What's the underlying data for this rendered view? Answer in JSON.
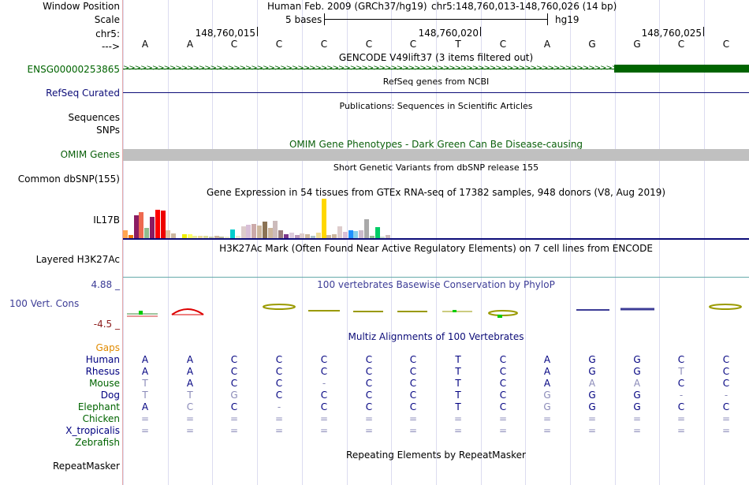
{
  "header": {
    "window_position_label": "Window Position",
    "scale_label": "Scale",
    "chrom_label": "chr5:",
    "arrow_label": "--->",
    "assembly_title": "Human Feb. 2009 (GRCh37/hg19)",
    "position": "chr5:148,760,013-148,760,026 (14 bp)",
    "scale_text": "5 bases",
    "scale_build": "hg19",
    "coords": [
      "148,760,015",
      "148,760,020",
      "148,760,025"
    ],
    "sequence": [
      "A",
      "A",
      "C",
      "C",
      "C",
      "C",
      "C",
      "T",
      "C",
      "A",
      "G",
      "G",
      "C",
      "C"
    ]
  },
  "tracks": {
    "gencode": {
      "title": "GENCODE V49lift37 (3 items filtered out)",
      "item_label": "ENSG00000253865",
      "color": "#006400"
    },
    "refseq": {
      "title": "RefSeq genes from NCBI",
      "label": "RefSeq Curated",
      "color": "#0c0c78"
    },
    "publications": {
      "title": "Publications: Sequences in Scientific Articles",
      "label_line1": "Sequences",
      "label_line2": "SNPs"
    },
    "omim": {
      "title": "OMIM Gene Phenotypes - Dark Green Can Be Disease-causing",
      "label": "OMIM Genes",
      "color": "#0a5f0a"
    },
    "dbsnp": {
      "title": "Short Genetic Variants from dbSNP release 155",
      "label": "Common dbSNP(155)"
    },
    "gtex": {
      "title": "Gene Expression in 54 tissues from GTEx RNA-seq of 17382 samples, 948 donors (V8, Aug 2019)",
      "label": "IL17B",
      "bar_colors": [
        "#ffa54f",
        "#ee7600",
        "#8b1c62",
        "#ee6a50",
        "#8fbc8f",
        "#8b1c62",
        "#ff0000",
        "#ee0000",
        "#e0c0a0",
        "#cdb79e",
        "#ffffff",
        "#eeee00",
        "#ffff66",
        "#eeee99",
        "#eedd99",
        "#dddd99",
        "#ccccaa",
        "#cdb79e",
        "#bbbb99",
        "#eeeecc",
        "#00cdcd",
        "#eeeecc",
        "#ddcccc",
        "#d8bfd8",
        "#ccaaaa",
        "#cdb79e",
        "#8b7355",
        "#cdb79e",
        "#ccbbbb",
        "#9a7d7d",
        "#7a378b",
        "#ddccdd",
        "#bb99bb",
        "#ddcccc",
        "#cdb79e",
        "#b0c4c4",
        "#eedd99",
        "#ffd700",
        "#cdb79e",
        "#cdb79e",
        "#ddcccc",
        "#d8bfd8",
        "#1e90ff",
        "#87ceeb",
        "#ccbbcc",
        "#a9a9a9",
        "#8fbc8f",
        "#00cd66",
        "#ccddcc",
        "#ccbbbb"
      ],
      "bar_values": [
        10,
        4,
        28,
        32,
        12,
        26,
        35,
        34,
        10,
        6,
        2,
        5,
        5,
        3,
        3,
        3,
        2,
        3,
        2,
        2,
        11,
        3,
        14,
        16,
        17,
        15,
        20,
        12,
        21,
        10,
        5,
        7,
        4,
        6,
        5,
        3,
        7,
        48,
        4,
        5,
        14,
        8,
        10,
        9,
        10,
        23,
        3,
        13,
        2,
        4
      ]
    },
    "h3k27ac": {
      "title": "H3K27Ac Mark (Often Found Near Active Regulatory Elements) on 7 cell lines from ENCODE",
      "label": "Layered H3K27Ac"
    },
    "phylop": {
      "title": "100 vertebrates Basewise Conservation by PhyloP",
      "label": "100 Vert. Cons",
      "max": "4.88 _",
      "min": "-4.5 _",
      "color": "#3c3c96"
    },
    "multiz": {
      "title": "Multiz Alignments of 100 Vertebrates",
      "gaps_label": "Gaps",
      "species": [
        {
          "name": "Human",
          "color": "#000080",
          "bases": [
            "A",
            "A",
            "C",
            "C",
            "C",
            "C",
            "C",
            "T",
            "C",
            "A",
            "G",
            "G",
            "C",
            "C"
          ]
        },
        {
          "name": "Rhesus",
          "color": "#000080",
          "bases": [
            "A",
            "A",
            "C",
            "C",
            "C",
            "C",
            "C",
            "T",
            "C",
            "A",
            "G",
            "G",
            "T",
            "C"
          ]
        },
        {
          "name": "Mouse",
          "color": "#006400",
          "bases": [
            "T",
            "A",
            "C",
            "C",
            "-",
            "C",
            "C",
            "T",
            "C",
            "A",
            "A",
            "A",
            "C",
            "C"
          ]
        },
        {
          "name": "Dog",
          "color": "#000080",
          "bases": [
            "T",
            "T",
            "G",
            "C",
            "C",
            "C",
            "C",
            "T",
            "C",
            "G",
            "G",
            "G",
            "-",
            "-"
          ]
        },
        {
          "name": "Elephant",
          "color": "#006400",
          "bases": [
            "A",
            "C",
            "C",
            "-",
            "C",
            "C",
            "C",
            "T",
            "C",
            "G",
            "G",
            "G",
            "C",
            "C"
          ]
        },
        {
          "name": "Chicken",
          "color": "#006400",
          "bases": [
            "=",
            "=",
            "=",
            "=",
            "=",
            "=",
            "=",
            "=",
            "=",
            "=",
            "=",
            "=",
            "=",
            "="
          ]
        },
        {
          "name": "X_tropicalis",
          "color": "#000080",
          "bases": [
            "=",
            "=",
            "=",
            "=",
            "=",
            "=",
            "=",
            "=",
            "=",
            "=",
            "=",
            "=",
            "=",
            "="
          ]
        },
        {
          "name": "Zebrafish",
          "color": "#006400",
          "bases": [
            "",
            "",
            "",
            "",
            "",
            "",
            "",
            "",
            "",
            "",
            "",
            "",
            "",
            ""
          ]
        }
      ]
    },
    "repeatmasker": {
      "title": "Repeating Elements by RepeatMasker",
      "label": "RepeatMasker"
    }
  }
}
